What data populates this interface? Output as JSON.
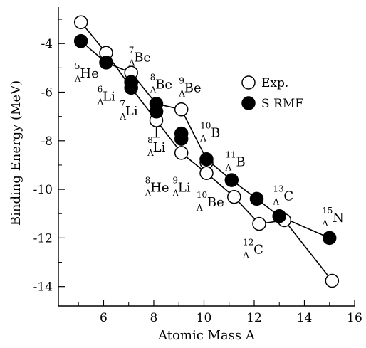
{
  "chart_data": {
    "type": "scatter",
    "xlabel": "Atomic Mass A",
    "ylabel": "Binding Energy (MeV)",
    "xlim": [
      4.2,
      16
    ],
    "ylim": [
      -14.8,
      -2.5
    ],
    "xticks": [
      6,
      8,
      10,
      12,
      14,
      16
    ],
    "yticks": [
      -4,
      -6,
      -8,
      -10,
      -12,
      -14
    ],
    "grid": false,
    "legend_position": "top-right",
    "series": [
      {
        "name": "Exp.",
        "marker": "open-circle",
        "points": [
          {
            "x": 5.1,
            "y": -3.12
          },
          {
            "x": 6.1,
            "y": -4.38
          },
          {
            "x": 7.1,
            "y": -5.2
          },
          {
            "x": 7.1,
            "y": -5.58
          },
          {
            "x": 8.1,
            "y": -6.8
          },
          {
            "x": 8.1,
            "y": -7.16
          },
          {
            "x": 9.1,
            "y": -6.71
          },
          {
            "x": 9.1,
            "y": -8.5
          },
          {
            "x": 10.1,
            "y": -8.89
          },
          {
            "x": 10.1,
            "y": -9.33
          },
          {
            "x": 11.2,
            "y": -10.31
          },
          {
            "x": 12.2,
            "y": -11.42
          },
          {
            "x": 13.2,
            "y": -11.27
          },
          {
            "x": 15.1,
            "y": -13.76
          }
        ],
        "error_bars": [
          {
            "x": 8.1,
            "y_low": -7.85,
            "y_high": -6.55
          }
        ]
      },
      {
        "name": "S RMF",
        "marker": "filled-circle",
        "points": [
          {
            "x": 5.1,
            "y": -3.9
          },
          {
            "x": 6.1,
            "y": -4.78
          },
          {
            "x": 7.1,
            "y": -5.6
          },
          {
            "x": 7.1,
            "y": -5.82
          },
          {
            "x": 8.1,
            "y": -6.48
          },
          {
            "x": 8.1,
            "y": -6.8
          },
          {
            "x": 9.1,
            "y": -7.7
          },
          {
            "x": 9.1,
            "y": -7.92
          },
          {
            "x": 10.1,
            "y": -8.76
          },
          {
            "x": 11.1,
            "y": -9.62
          },
          {
            "x": 12.1,
            "y": -10.39
          },
          {
            "x": 13.0,
            "y": -11.1
          },
          {
            "x": 15.0,
            "y": -12.0
          }
        ]
      }
    ],
    "lines": [
      {
        "name": "upper-connecting-line",
        "points": [
          [
            5.1,
            -3.9
          ],
          [
            6.1,
            -4.78
          ],
          [
            7.1,
            -5.2
          ],
          [
            8.1,
            -6.48
          ],
          [
            9.1,
            -6.71
          ],
          [
            10.1,
            -8.76
          ],
          [
            11.1,
            -9.62
          ],
          [
            12.1,
            -10.39
          ],
          [
            13.0,
            -11.1
          ],
          [
            15.0,
            -12.0
          ]
        ]
      },
      {
        "name": "lower-connecting-line",
        "points": [
          [
            5.1,
            -3.12
          ],
          [
            6.1,
            -4.38
          ],
          [
            7.1,
            -5.82
          ],
          [
            8.1,
            -7.16
          ],
          [
            9.1,
            -8.5
          ],
          [
            10.1,
            -9.33
          ],
          [
            11.2,
            -10.31
          ],
          [
            12.2,
            -11.42
          ],
          [
            13.2,
            -11.27
          ],
          [
            15.1,
            -13.76
          ]
        ]
      }
    ],
    "annotations": [
      {
        "name": "label-5He",
        "mass": "5",
        "sub": "Λ",
        "element": "He",
        "x": 4.85,
        "y": -5.25
      },
      {
        "name": "label-6Li",
        "mass": "6",
        "sub": "Λ",
        "element": "Li",
        "x": 5.75,
        "y": -6.2
      },
      {
        "name": "label-7Li",
        "mass": "7",
        "sub": "Λ",
        "element": "Li",
        "x": 6.65,
        "y": -6.8
      },
      {
        "name": "label-7Be",
        "mass": "7",
        "sub": "Λ",
        "element": "Be",
        "x": 7.0,
        "y": -4.6
      },
      {
        "name": "label-8Be",
        "mass": "8",
        "sub": "Λ",
        "element": "Be",
        "x": 7.85,
        "y": -5.7
      },
      {
        "name": "label-9Be",
        "mass": "9",
        "sub": "Λ",
        "element": "Be",
        "x": 9.0,
        "y": -5.85
      },
      {
        "name": "label-8Li",
        "mass": "8",
        "sub": "Λ",
        "element": "Li",
        "x": 7.75,
        "y": -8.3
      },
      {
        "name": "label-10B",
        "mass": "10",
        "sub": "Λ",
        "element": "B",
        "x": 9.85,
        "y": -7.7
      },
      {
        "name": "label-11B",
        "mass": "11",
        "sub": "Λ",
        "element": "B",
        "x": 10.85,
        "y": -8.9
      },
      {
        "name": "label-8He",
        "mass": "8",
        "sub": "Λ",
        "element": "He",
        "x": 7.65,
        "y": -9.95
      },
      {
        "name": "label-9Li",
        "mass": "9",
        "sub": "Λ",
        "element": "Li",
        "x": 8.75,
        "y": -9.95
      },
      {
        "name": "label-10Be",
        "mass": "10",
        "sub": "Λ",
        "element": "Be",
        "x": 9.7,
        "y": -10.55
      },
      {
        "name": "label-13C",
        "mass": "13",
        "sub": "Λ",
        "element": "C",
        "x": 12.75,
        "y": -10.3
      },
      {
        "name": "label-12C",
        "mass": "12",
        "sub": "Λ",
        "element": "C",
        "x": 11.55,
        "y": -12.5
      },
      {
        "name": "label-15N",
        "mass": "15",
        "sub": "Λ",
        "element": "N",
        "x": 14.7,
        "y": -11.2
      }
    ]
  }
}
